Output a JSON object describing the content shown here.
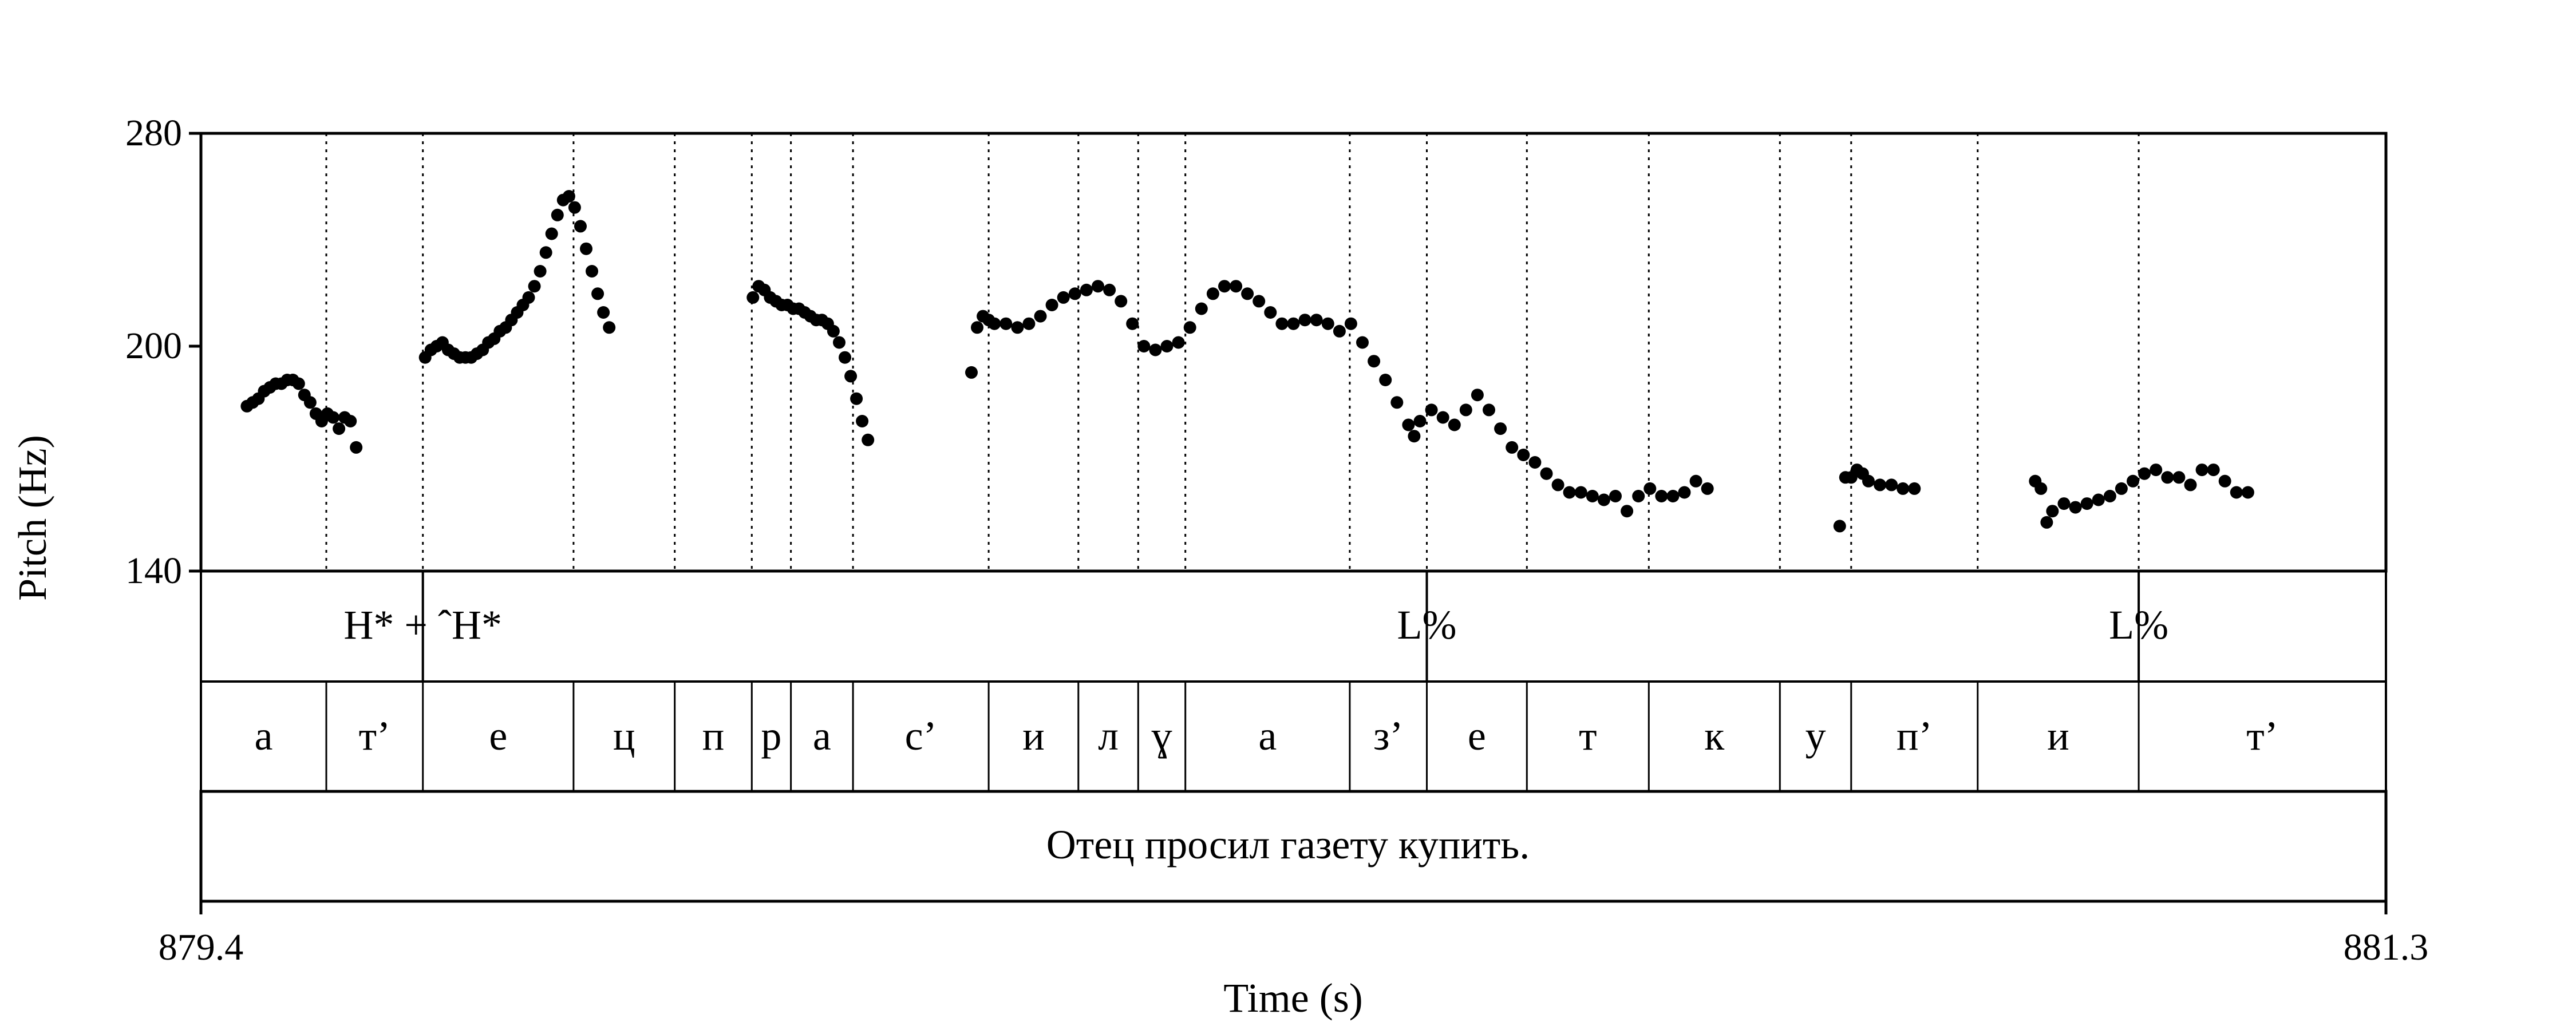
{
  "chart_data": {
    "type": "scatter",
    "title": "",
    "xlabel": "Time (s)",
    "ylabel": "Pitch (Hz)",
    "xlim": [
      879.4,
      881.3
    ],
    "ylim": [
      140,
      280
    ],
    "x_tick_labels": [
      "879.4",
      "881.3"
    ],
    "y_tick_labels": [
      "280",
      "200",
      "140"
    ],
    "y_ticks": [
      280,
      200,
      140
    ],
    "marker_color": "#000000",
    "series": [
      {
        "values": [
          [
            879.44,
            184
          ],
          [
            879.445,
            185
          ],
          [
            879.45,
            186
          ],
          [
            879.455,
            188
          ],
          [
            879.46,
            189
          ],
          [
            879.465,
            190
          ],
          [
            879.47,
            190
          ],
          [
            879.475,
            191
          ],
          [
            879.48,
            191
          ],
          [
            879.485,
            190
          ],
          [
            879.49,
            187
          ],
          [
            879.495,
            185
          ],
          [
            879.5,
            182
          ],
          [
            879.505,
            180
          ],
          [
            879.51,
            182
          ],
          [
            879.515,
            181
          ],
          [
            879.52,
            178
          ],
          [
            879.525,
            181
          ],
          [
            879.53,
            180
          ],
          [
            879.535,
            173
          ],
          [
            879.595,
            197
          ],
          [
            879.6,
            199
          ],
          [
            879.605,
            200
          ],
          [
            879.61,
            201
          ],
          [
            879.615,
            199
          ],
          [
            879.62,
            198
          ],
          [
            879.625,
            197
          ],
          [
            879.63,
            197
          ],
          [
            879.635,
            197
          ],
          [
            879.64,
            198
          ],
          [
            879.645,
            199
          ],
          [
            879.65,
            201
          ],
          [
            879.655,
            202
          ],
          [
            879.66,
            204
          ],
          [
            879.665,
            205
          ],
          [
            879.67,
            207
          ],
          [
            879.675,
            209
          ],
          [
            879.68,
            211
          ],
          [
            879.685,
            213
          ],
          [
            879.69,
            216
          ],
          [
            879.695,
            220
          ],
          [
            879.7,
            225
          ],
          [
            879.705,
            230
          ],
          [
            879.71,
            235
          ],
          [
            879.715,
            239
          ],
          [
            879.72,
            240
          ],
          [
            879.725,
            237
          ],
          [
            879.73,
            232
          ],
          [
            879.735,
            226
          ],
          [
            879.74,
            220
          ],
          [
            879.745,
            214
          ],
          [
            879.75,
            209
          ],
          [
            879.755,
            205
          ],
          [
            879.88,
            213
          ],
          [
            879.885,
            216
          ],
          [
            879.89,
            215
          ],
          [
            879.895,
            213
          ],
          [
            879.9,
            212
          ],
          [
            879.905,
            211
          ],
          [
            879.91,
            211
          ],
          [
            879.915,
            210
          ],
          [
            879.92,
            210
          ],
          [
            879.925,
            209
          ],
          [
            879.93,
            208
          ],
          [
            879.935,
            207
          ],
          [
            879.94,
            207
          ],
          [
            879.945,
            206
          ],
          [
            879.95,
            204
          ],
          [
            879.955,
            201
          ],
          [
            879.96,
            197
          ],
          [
            879.965,
            192
          ],
          [
            879.97,
            186
          ],
          [
            879.975,
            180
          ],
          [
            879.98,
            175
          ],
          [
            880.07,
            193
          ],
          [
            880.075,
            205
          ],
          [
            880.08,
            208
          ],
          [
            880.085,
            207
          ],
          [
            880.09,
            206
          ],
          [
            880.1,
            206
          ],
          [
            880.11,
            205
          ],
          [
            880.12,
            206
          ],
          [
            880.13,
            208
          ],
          [
            880.14,
            211
          ],
          [
            880.15,
            213
          ],
          [
            880.16,
            214
          ],
          [
            880.17,
            215
          ],
          [
            880.18,
            216
          ],
          [
            880.19,
            215
          ],
          [
            880.2,
            212
          ],
          [
            880.21,
            206
          ],
          [
            880.22,
            200
          ],
          [
            880.23,
            199
          ],
          [
            880.24,
            200
          ],
          [
            880.25,
            201
          ],
          [
            880.26,
            205
          ],
          [
            880.27,
            210
          ],
          [
            880.28,
            214
          ],
          [
            880.29,
            216
          ],
          [
            880.3,
            216
          ],
          [
            880.31,
            214
          ],
          [
            880.32,
            212
          ],
          [
            880.33,
            209
          ],
          [
            880.34,
            206
          ],
          [
            880.35,
            206
          ],
          [
            880.36,
            207
          ],
          [
            880.37,
            207
          ],
          [
            880.38,
            206
          ],
          [
            880.39,
            204
          ],
          [
            880.4,
            206
          ],
          [
            880.41,
            201
          ],
          [
            880.42,
            196
          ],
          [
            880.43,
            191
          ],
          [
            880.44,
            185
          ],
          [
            880.45,
            179
          ],
          [
            880.455,
            176
          ],
          [
            880.46,
            180
          ],
          [
            880.47,
            183
          ],
          [
            880.48,
            181
          ],
          [
            880.49,
            179
          ],
          [
            880.5,
            183
          ],
          [
            880.51,
            187
          ],
          [
            880.52,
            183
          ],
          [
            880.53,
            178
          ],
          [
            880.54,
            173
          ],
          [
            880.55,
            171
          ],
          [
            880.56,
            169
          ],
          [
            880.57,
            166
          ],
          [
            880.58,
            163
          ],
          [
            880.59,
            161
          ],
          [
            880.6,
            161
          ],
          [
            880.61,
            160
          ],
          [
            880.62,
            159
          ],
          [
            880.63,
            160
          ],
          [
            880.64,
            156
          ],
          [
            880.65,
            160
          ],
          [
            880.66,
            162
          ],
          [
            880.67,
            160
          ],
          [
            880.68,
            160
          ],
          [
            880.69,
            161
          ],
          [
            880.7,
            164
          ],
          [
            880.71,
            162
          ],
          [
            880.825,
            152
          ],
          [
            880.83,
            165
          ],
          [
            880.835,
            165
          ],
          [
            880.84,
            167
          ],
          [
            880.845,
            166
          ],
          [
            880.85,
            164
          ],
          [
            880.86,
            163
          ],
          [
            880.87,
            163
          ],
          [
            880.88,
            162
          ],
          [
            880.89,
            162
          ],
          [
            880.995,
            164
          ],
          [
            881.0,
            162
          ],
          [
            881.005,
            153
          ],
          [
            881.01,
            156
          ],
          [
            881.02,
            158
          ],
          [
            881.03,
            157
          ],
          [
            881.04,
            158
          ],
          [
            881.05,
            159
          ],
          [
            881.06,
            160
          ],
          [
            881.07,
            162
          ],
          [
            881.08,
            164
          ],
          [
            881.09,
            166
          ],
          [
            881.1,
            167
          ],
          [
            881.11,
            165
          ],
          [
            881.12,
            165
          ],
          [
            881.13,
            163
          ],
          [
            881.14,
            167
          ],
          [
            881.15,
            167
          ],
          [
            881.16,
            164
          ],
          [
            881.17,
            161
          ],
          [
            881.18,
            161
          ]
        ]
      }
    ]
  },
  "tiers": {
    "tones": {
      "labels": [
        {
          "text": "H* + ˆH*",
          "x": 879.593
        },
        {
          "text": "L%",
          "x": 880.466
        },
        {
          "text": "L%",
          "x": 881.085
        }
      ]
    },
    "segments": {
      "boundaries": [
        879.4,
        879.509,
        879.593,
        879.724,
        879.812,
        879.879,
        879.913,
        879.967,
        880.085,
        880.163,
        880.215,
        880.256,
        880.399,
        880.466,
        880.553,
        880.659,
        880.773,
        880.835,
        880.945,
        881.085,
        881.3
      ],
      "labels": [
        "а",
        "т’",
        "е",
        "ц",
        "п",
        "р",
        "а",
        "с’",
        "и",
        "л",
        "ɣ",
        "а",
        "з’",
        "е",
        "т",
        "к",
        "у",
        "п’",
        "и",
        "т’"
      ]
    },
    "sentence": {
      "text": "Отец просил газету купить."
    }
  }
}
